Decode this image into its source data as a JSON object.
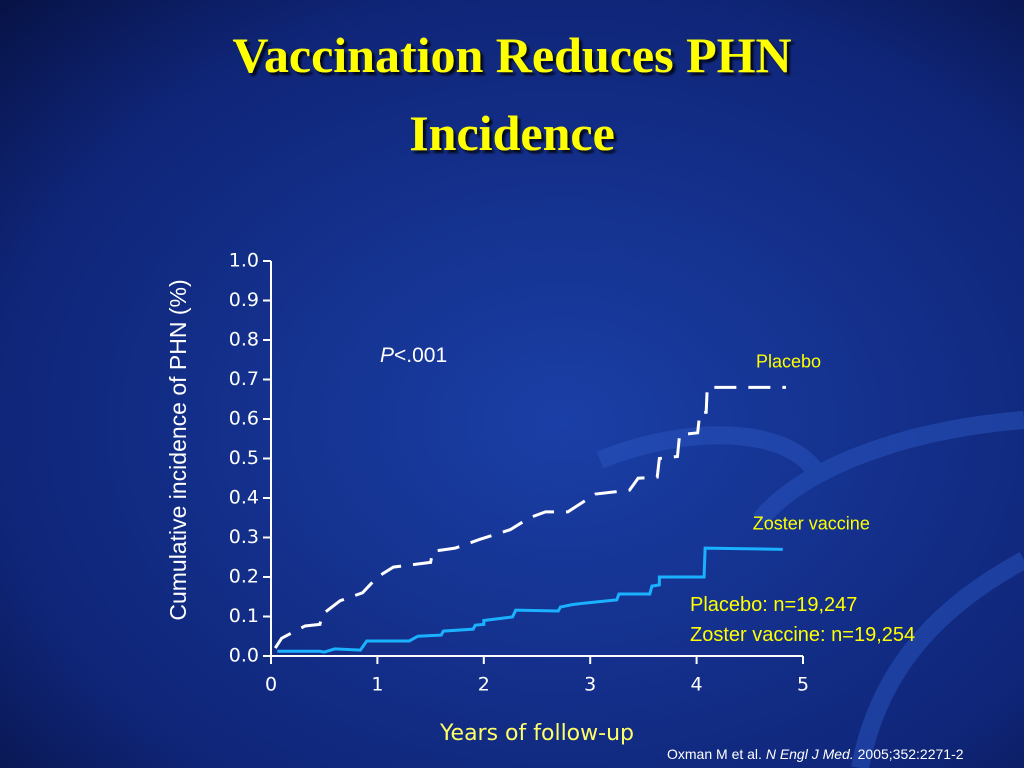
{
  "chart_data": {
    "type": "line",
    "title": [
      "Vaccination Reduces PHN",
      "Incidence"
    ],
    "ylabel": "Cumulative incidence of PHN (%)",
    "xlabel": "Years of follow-up",
    "annotation": {
      "italic": "P",
      "text": "<.001"
    },
    "notes": [
      "Placebo: n=19,247",
      "Zoster vaccine: n=19,254"
    ],
    "citation": {
      "authors": "Oxman M et al. ",
      "journal": "N Engl J Med.",
      "ref": " 2005;352:2271-2"
    },
    "xlim": [
      0,
      5
    ],
    "xticks": [
      0,
      1,
      2,
      3,
      4,
      5
    ],
    "ylim": [
      0,
      1
    ],
    "yticks": [
      {
        "value": 0,
        "label": "0.0"
      },
      {
        "value": 0.1,
        "label": "0.1"
      },
      {
        "value": 0.2,
        "label": "0.2"
      },
      {
        "value": 0.3,
        "label": "0.3"
      },
      {
        "value": 0.4,
        "label": "0.4"
      },
      {
        "value": 0.5,
        "label": "0.5"
      },
      {
        "value": 0.6,
        "label": "0.6"
      },
      {
        "value": 0.7,
        "label": "0.7"
      },
      {
        "value": 0.8,
        "label": "0.8"
      },
      {
        "value": 0.9,
        "label": "0.9"
      },
      {
        "value": 1,
        "label": "1.0"
      }
    ],
    "series": [
      {
        "name": "Placebo",
        "color": "#ffffff",
        "dashed": true,
        "x": [
          0.04,
          0.1,
          0.32,
          0.46,
          0.48,
          0.65,
          0.86,
          1.0,
          1.15,
          1.5,
          1.52,
          1.73,
          1.96,
          2.25,
          2.43,
          2.58,
          2.79,
          3.05,
          3.37,
          3.45,
          3.63,
          3.65,
          3.82,
          3.84,
          4.01,
          4.03,
          4.09,
          4.1,
          4.84
        ],
        "y": [
          0.02,
          0.045,
          0.076,
          0.08,
          0.105,
          0.14,
          0.16,
          0.2,
          0.225,
          0.237,
          0.265,
          0.273,
          0.295,
          0.32,
          0.35,
          0.365,
          0.365,
          0.41,
          0.42,
          0.45,
          0.453,
          0.5,
          0.505,
          0.56,
          0.565,
          0.615,
          0.617,
          0.68,
          0.68
        ]
      },
      {
        "name": "Zoster vaccine",
        "color": "#1ab2ff",
        "dashed": false,
        "x": [
          0.06,
          0.46,
          0.5,
          0.6,
          0.84,
          0.9,
          1.3,
          1.38,
          1.6,
          1.62,
          1.9,
          1.92,
          2.0,
          2.0,
          2.27,
          2.3,
          2.7,
          2.72,
          2.83,
          2.95,
          3.25,
          3.27,
          3.56,
          3.58,
          3.65,
          3.65,
          4.07,
          4.08,
          4.81
        ],
        "y": [
          0.012,
          0.012,
          0.01,
          0.018,
          0.015,
          0.038,
          0.038,
          0.05,
          0.053,
          0.063,
          0.068,
          0.078,
          0.08,
          0.09,
          0.099,
          0.116,
          0.114,
          0.124,
          0.13,
          0.134,
          0.142,
          0.157,
          0.157,
          0.177,
          0.18,
          0.2,
          0.2,
          0.273,
          0.27
        ]
      }
    ]
  }
}
